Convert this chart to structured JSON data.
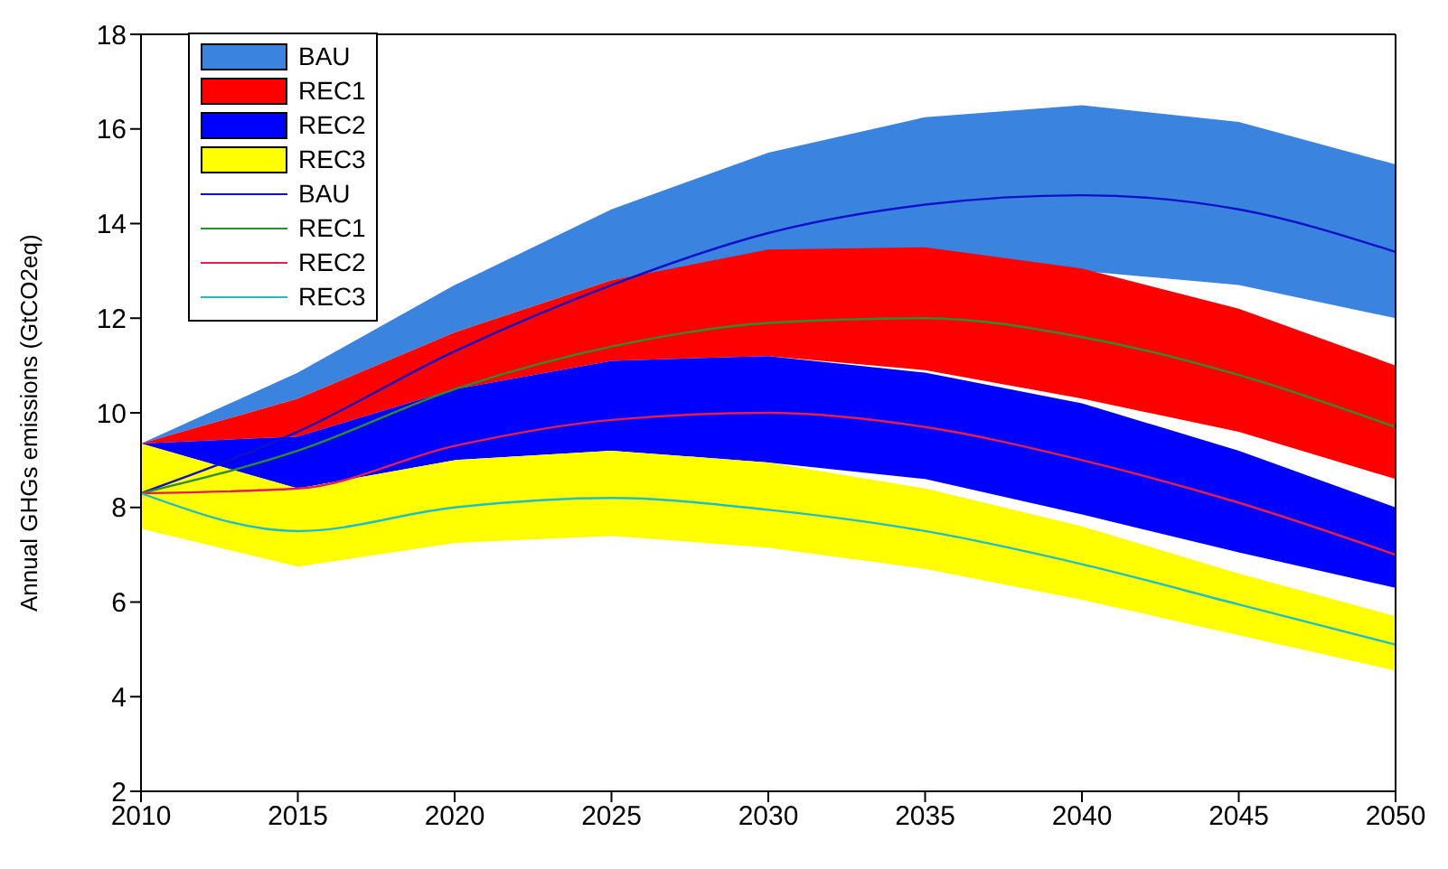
{
  "chart_data": {
    "type": "area",
    "ylabel": "Annual GHGs emissions (GtCO2eq)",
    "x": [
      2010,
      2015,
      2020,
      2025,
      2030,
      2035,
      2040,
      2045,
      2050
    ],
    "xlim": [
      2010,
      2050
    ],
    "xticks": [
      2010,
      2015,
      2020,
      2025,
      2030,
      2035,
      2040,
      2045,
      2050
    ],
    "ylim": [
      2,
      18
    ],
    "yticks": [
      2,
      4,
      6,
      8,
      10,
      12,
      14,
      16,
      18
    ],
    "grid": false,
    "legend": "top left",
    "series": [
      {
        "name": "BAU",
        "type": "area",
        "color": "#3a84e0",
        "values": [
          null,
          null,
          null,
          null,
          null,
          null,
          null,
          null,
          null
        ],
        "lower": [
          9.35,
          10.3,
          11.7,
          12.8,
          13.4,
          13.45,
          13.0,
          12.7,
          12.0
        ],
        "upper": [
          9.35,
          10.85,
          12.7,
          14.3,
          15.5,
          16.25,
          16.5,
          16.15,
          15.25
        ]
      },
      {
        "name": "REC1",
        "type": "area",
        "color": "#ff0000",
        "values": [
          null,
          null,
          null,
          null,
          null,
          null,
          null,
          null,
          null
        ],
        "lower": [
          9.35,
          9.5,
          10.5,
          11.1,
          11.2,
          10.9,
          10.3,
          9.6,
          8.6
        ],
        "upper": [
          9.35,
          10.3,
          11.7,
          12.8,
          13.45,
          13.5,
          13.05,
          12.2,
          11.0
        ]
      },
      {
        "name": "REC2",
        "type": "area",
        "color": "#0000ff",
        "values": [
          null,
          null,
          null,
          null,
          null,
          null,
          null,
          null,
          null
        ],
        "lower": [
          9.35,
          8.4,
          9.0,
          9.2,
          8.95,
          8.6,
          7.85,
          7.05,
          6.3
        ],
        "upper": [
          9.35,
          9.5,
          10.5,
          11.1,
          11.2,
          10.85,
          10.2,
          9.2,
          8.0
        ]
      },
      {
        "name": "REC3",
        "type": "area",
        "color": "#ffff00",
        "values": [
          null,
          null,
          null,
          null,
          null,
          null,
          null,
          null,
          null
        ],
        "lower": [
          7.55,
          6.75,
          7.25,
          7.4,
          7.15,
          6.7,
          6.05,
          5.3,
          4.55
        ],
        "upper": [
          9.35,
          8.4,
          9.0,
          9.2,
          8.95,
          8.4,
          7.6,
          6.6,
          5.7
        ]
      },
      {
        "name": "BAU",
        "type": "line",
        "color": "#1010c8",
        "values": [
          8.3,
          9.6,
          11.3,
          12.7,
          13.8,
          14.4,
          14.6,
          14.3,
          13.4
        ]
      },
      {
        "name": "REC1",
        "type": "line",
        "color": "#2e8b2e",
        "values": [
          8.3,
          9.2,
          10.5,
          11.4,
          11.9,
          12.0,
          11.6,
          10.8,
          9.7
        ]
      },
      {
        "name": "REC2",
        "type": "line",
        "color": "#e02050",
        "values": [
          8.3,
          8.4,
          9.3,
          9.85,
          10.0,
          9.7,
          9.0,
          8.1,
          7.0
        ]
      },
      {
        "name": "REC3",
        "type": "line",
        "color": "#20c0c0",
        "values": [
          8.3,
          7.5,
          8.0,
          8.2,
          7.95,
          7.5,
          6.8,
          5.95,
          5.1
        ]
      }
    ]
  }
}
